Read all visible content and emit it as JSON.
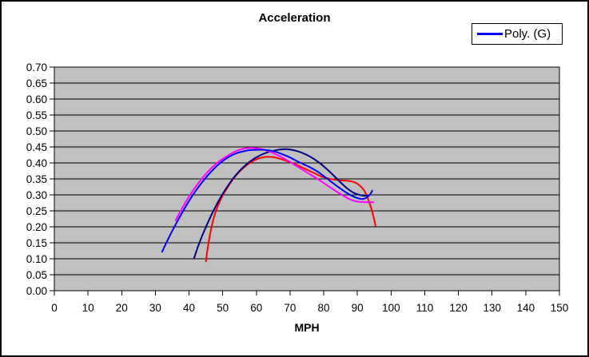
{
  "chart_window": {
    "background": "#FFFFFF",
    "border_color": "#000000"
  },
  "chart_data": {
    "type": "line",
    "title": "Acceleration",
    "xlabel": "MPH",
    "ylabel": "",
    "xlim": [
      0,
      150
    ],
    "ylim": [
      0.0,
      0.7
    ],
    "grid": "horizontal",
    "plot_bg": "#C0C0C0",
    "grid_color": "#000000",
    "axis_color": "#000000",
    "x_ticks": [
      0,
      10,
      20,
      30,
      40,
      50,
      60,
      70,
      80,
      90,
      100,
      110,
      120,
      130,
      140,
      150
    ],
    "x_tick_labels": [
      "0",
      "10",
      "20",
      "30",
      "40",
      "50",
      "60",
      "70",
      "80",
      "90",
      "100",
      "110",
      "120",
      "130",
      "140",
      "150"
    ],
    "y_ticks": [
      0.0,
      0.05,
      0.1,
      0.15,
      0.2,
      0.25,
      0.3,
      0.35,
      0.4,
      0.45,
      0.5,
      0.55,
      0.6,
      0.65,
      0.7
    ],
    "y_tick_labels": [
      "0.00",
      "0.05",
      "0.10",
      "0.15",
      "0.20",
      "0.25",
      "0.30",
      "0.35",
      "0.40",
      "0.45",
      "0.50",
      "0.55",
      "0.60",
      "0.65",
      "0.70"
    ],
    "legend": {
      "position": "top-right",
      "border_color": "#000000",
      "entries": [
        {
          "label": "Poly. (G)",
          "color": "#0000FF"
        }
      ]
    },
    "series": [
      {
        "name": "poly-trend-red",
        "color": "#FF0000",
        "points": [
          [
            45,
            0.092
          ],
          [
            45.8,
            0.15
          ],
          [
            46.8,
            0.205
          ],
          [
            48,
            0.25
          ],
          [
            49.5,
            0.288
          ],
          [
            51,
            0.316
          ],
          [
            53,
            0.348
          ],
          [
            55,
            0.373
          ],
          [
            57,
            0.392
          ],
          [
            59,
            0.406
          ],
          [
            61,
            0.415
          ],
          [
            63,
            0.419
          ],
          [
            65,
            0.418
          ],
          [
            67,
            0.413
          ],
          [
            69,
            0.406
          ],
          [
            71,
            0.398
          ],
          [
            73,
            0.389
          ],
          [
            75,
            0.379
          ],
          [
            77,
            0.369
          ],
          [
            79,
            0.359
          ],
          [
            81,
            0.352
          ],
          [
            83,
            0.348
          ],
          [
            85,
            0.345
          ],
          [
            87,
            0.344
          ],
          [
            89,
            0.34
          ],
          [
            90.5,
            0.331
          ],
          [
            92,
            0.314
          ],
          [
            93,
            0.292
          ],
          [
            94,
            0.262
          ],
          [
            94.8,
            0.231
          ],
          [
            95.4,
            0.203
          ]
        ]
      },
      {
        "name": "poly-trend-navy",
        "color": "#000080",
        "points": [
          [
            41.5,
            0.102
          ],
          [
            43,
            0.148
          ],
          [
            45,
            0.199
          ],
          [
            47,
            0.245
          ],
          [
            49,
            0.285
          ],
          [
            51,
            0.32
          ],
          [
            53,
            0.35
          ],
          [
            55,
            0.375
          ],
          [
            57,
            0.395
          ],
          [
            59,
            0.411
          ],
          [
            61,
            0.423
          ],
          [
            63,
            0.432
          ],
          [
            65,
            0.438
          ],
          [
            67,
            0.442
          ],
          [
            69,
            0.443
          ],
          [
            71,
            0.44
          ],
          [
            73,
            0.434
          ],
          [
            75,
            0.425
          ],
          [
            77,
            0.413
          ],
          [
            79,
            0.398
          ],
          [
            81,
            0.38
          ],
          [
            83,
            0.36
          ],
          [
            85,
            0.339
          ],
          [
            87,
            0.32
          ],
          [
            89,
            0.306
          ],
          [
            91,
            0.299
          ],
          [
            92.5,
            0.297
          ],
          [
            93.4,
            0.299
          ]
        ]
      },
      {
        "name": "poly-trend-magenta",
        "color": "#FF00FF",
        "points": [
          [
            36,
            0.22
          ],
          [
            38,
            0.259
          ],
          [
            40,
            0.295
          ],
          [
            42,
            0.326
          ],
          [
            44,
            0.353
          ],
          [
            46,
            0.377
          ],
          [
            48,
            0.397
          ],
          [
            50,
            0.413
          ],
          [
            52,
            0.426
          ],
          [
            54,
            0.437
          ],
          [
            56,
            0.444
          ],
          [
            58,
            0.447
          ],
          [
            60,
            0.446
          ],
          [
            62,
            0.442
          ],
          [
            64,
            0.435
          ],
          [
            66,
            0.426
          ],
          [
            68,
            0.415
          ],
          [
            70,
            0.403
          ],
          [
            72,
            0.39
          ],
          [
            74,
            0.377
          ],
          [
            76,
            0.364
          ],
          [
            78,
            0.351
          ],
          [
            80,
            0.337
          ],
          [
            82,
            0.323
          ],
          [
            84,
            0.309
          ],
          [
            86,
            0.296
          ],
          [
            88,
            0.285
          ],
          [
            90,
            0.279
          ],
          [
            91.5,
            0.278
          ],
          [
            93,
            0.277
          ],
          [
            94.8,
            0.277
          ]
        ]
      },
      {
        "name": "poly-trend-blue-Poly-(G)",
        "color": "#0000FF",
        "points": [
          [
            32,
            0.122
          ],
          [
            34,
            0.166
          ],
          [
            36,
            0.207
          ],
          [
            38,
            0.245
          ],
          [
            40,
            0.281
          ],
          [
            42,
            0.313
          ],
          [
            44,
            0.341
          ],
          [
            46,
            0.366
          ],
          [
            48,
            0.388
          ],
          [
            50,
            0.406
          ],
          [
            52,
            0.42
          ],
          [
            54,
            0.43
          ],
          [
            56,
            0.436
          ],
          [
            58,
            0.44
          ],
          [
            60,
            0.441
          ],
          [
            62,
            0.441
          ],
          [
            64,
            0.439
          ],
          [
            66,
            0.434
          ],
          [
            68,
            0.426
          ],
          [
            70,
            0.417
          ],
          [
            72,
            0.406
          ],
          [
            74,
            0.396
          ],
          [
            76,
            0.386
          ],
          [
            78,
            0.374
          ],
          [
            80,
            0.359
          ],
          [
            82,
            0.343
          ],
          [
            84,
            0.327
          ],
          [
            86,
            0.312
          ],
          [
            88,
            0.299
          ],
          [
            90,
            0.29
          ],
          [
            91.5,
            0.287
          ],
          [
            92.8,
            0.292
          ],
          [
            93.8,
            0.302
          ],
          [
            94.4,
            0.313
          ]
        ]
      }
    ]
  }
}
